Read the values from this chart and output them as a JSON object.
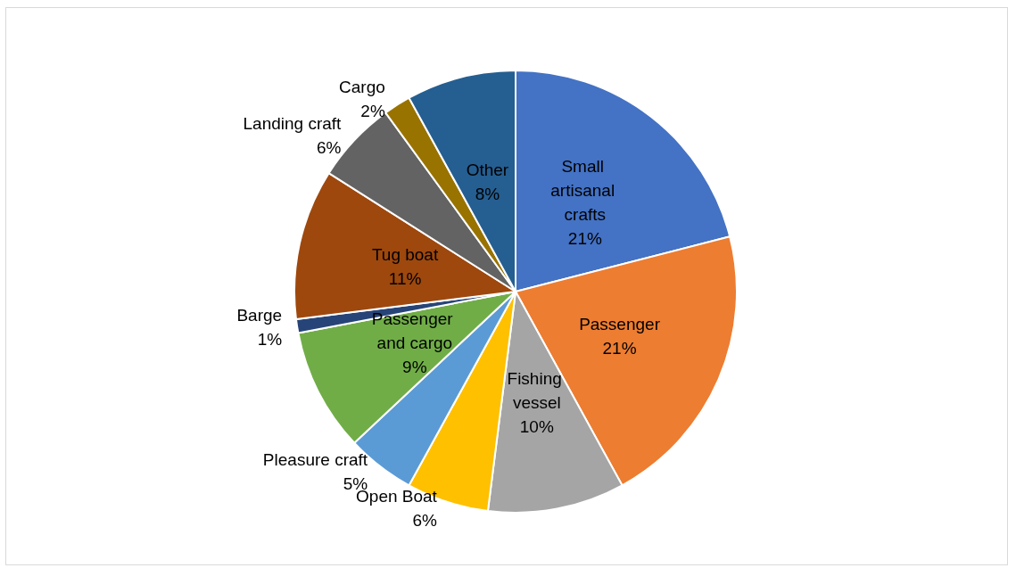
{
  "chart_data": {
    "type": "pie",
    "categories": [
      "Small artisanal crafts",
      "Passenger",
      "Fishing vessel",
      "Open Boat",
      "Pleasure craft",
      "Passenger and cargo",
      "Barge",
      "Tug boat",
      "Landing craft",
      "Cargo",
      "Other"
    ],
    "values": [
      21,
      21,
      10,
      6,
      5,
      9,
      1,
      11,
      6,
      2,
      8
    ],
    "value_labels": [
      "21%",
      "21%",
      "10%",
      "6%",
      "5%",
      "9%",
      "1%",
      "11%",
      "6%",
      "2%",
      "8%"
    ],
    "colors": [
      "#4472c4",
      "#ed7d31",
      "#a5a5a5",
      "#ffc000",
      "#5b9bd5",
      "#70ad47",
      "#264478",
      "#9e480e",
      "#636363",
      "#997300",
      "#255e91"
    ]
  }
}
